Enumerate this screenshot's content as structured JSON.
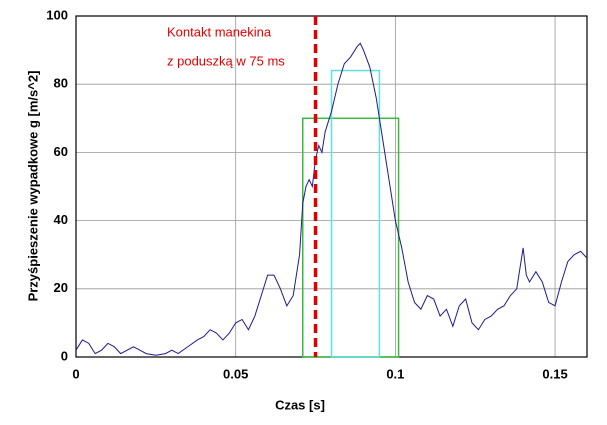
{
  "chart_data": {
    "type": "line",
    "xlabel": "Czas [s]",
    "ylabel": "Przyśpieszenie wypadkowe g [m/s^2]",
    "annotations": [
      "Kontakt manekina",
      "z poduszką w 75 ms"
    ],
    "annotation_color": "#e00000",
    "contact_time": 0.075,
    "contact_color": "#e00000",
    "xlim": [
      0,
      0.16
    ],
    "ylim": [
      0,
      100
    ],
    "xticks": [
      0,
      0.05,
      0.1,
      0.15
    ],
    "yticks": [
      0,
      20,
      40,
      60,
      80,
      100
    ],
    "grid": true,
    "windows": [
      {
        "start": 0.071,
        "end": 0.101,
        "height": 70,
        "color": "#3cb93c"
      },
      {
        "start": 0.08,
        "end": 0.095,
        "height": 84,
        "color": "#5fe0e0"
      }
    ],
    "x": [
      0,
      0.002,
      0.004,
      0.006,
      0.008,
      0.01,
      0.012,
      0.014,
      0.016,
      0.018,
      0.02,
      0.022,
      0.025,
      0.028,
      0.03,
      0.032,
      0.035,
      0.038,
      0.04,
      0.042,
      0.044,
      0.046,
      0.048,
      0.05,
      0.052,
      0.054,
      0.056,
      0.058,
      0.06,
      0.062,
      0.064,
      0.066,
      0.068,
      0.07,
      0.071,
      0.072,
      0.073,
      0.074,
      0.075,
      0.076,
      0.077,
      0.078,
      0.079,
      0.08,
      0.082,
      0.084,
      0.086,
      0.088,
      0.089,
      0.09,
      0.092,
      0.094,
      0.096,
      0.098,
      0.1,
      0.102,
      0.104,
      0.106,
      0.108,
      0.11,
      0.112,
      0.114,
      0.116,
      0.118,
      0.12,
      0.122,
      0.124,
      0.126,
      0.128,
      0.13,
      0.132,
      0.134,
      0.136,
      0.138,
      0.14,
      0.141,
      0.142,
      0.144,
      0.146,
      0.148,
      0.15,
      0.152,
      0.154,
      0.156,
      0.158,
      0.16
    ],
    "series": [
      {
        "color": "#1c1c8c",
        "values": [
          2,
          5,
          4,
          1,
          2,
          4,
          3,
          1,
          2,
          3,
          2,
          1,
          0.5,
          1,
          2,
          1,
          3,
          5,
          6,
          8,
          7,
          5,
          7,
          10,
          11,
          8,
          12,
          18,
          24,
          24,
          20,
          15,
          18,
          30,
          45,
          50,
          52,
          50,
          58,
          62,
          60,
          66,
          69,
          72,
          80,
          86,
          88,
          91,
          92,
          90,
          85,
          76,
          64,
          52,
          40,
          32,
          22,
          16,
          14,
          18,
          17,
          12,
          14,
          9,
          15,
          17,
          10,
          8,
          11,
          12,
          14,
          15,
          18,
          20,
          32,
          24,
          22,
          25,
          22,
          16,
          15,
          22,
          28,
          30,
          31,
          29
        ]
      }
    ]
  }
}
